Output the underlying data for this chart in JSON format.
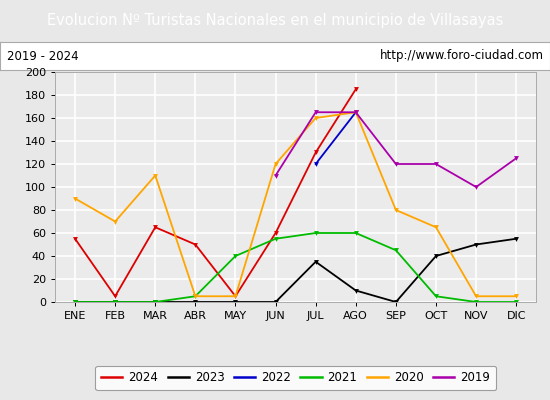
{
  "title": "Evolucion Nº Turistas Nacionales en el municipio de Villasayas",
  "subtitle_left": "2019 - 2024",
  "subtitle_right": "http://www.foro-ciudad.com",
  "title_bg_color": "#4472c4",
  "title_text_color": "#ffffff",
  "months": [
    "ENE",
    "FEB",
    "MAR",
    "ABR",
    "MAY",
    "JUN",
    "JUL",
    "AGO",
    "SEP",
    "OCT",
    "NOV",
    "DIC"
  ],
  "ylim": [
    0,
    200
  ],
  "yticks": [
    0,
    20,
    40,
    60,
    80,
    100,
    120,
    140,
    160,
    180,
    200
  ],
  "series": {
    "2024": {
      "color": "#dd0000",
      "data": [
        55,
        5,
        65,
        50,
        5,
        60,
        130,
        185,
        null,
        null,
        null,
        null
      ]
    },
    "2023": {
      "color": "#000000",
      "data": [
        0,
        0,
        0,
        0,
        0,
        0,
        35,
        10,
        0,
        40,
        50,
        55
      ]
    },
    "2022": {
      "color": "#0000cc",
      "data": [
        null,
        null,
        null,
        null,
        null,
        null,
        120,
        165,
        null,
        null,
        null,
        null
      ]
    },
    "2021": {
      "color": "#00bb00",
      "data": [
        0,
        0,
        0,
        5,
        40,
        55,
        60,
        60,
        45,
        5,
        0,
        0
      ]
    },
    "2020": {
      "color": "#ffa500",
      "data": [
        90,
        70,
        110,
        5,
        5,
        120,
        160,
        165,
        80,
        65,
        5,
        5
      ]
    },
    "2019": {
      "color": "#aa00aa",
      "data": [
        null,
        null,
        null,
        null,
        null,
        110,
        165,
        165,
        120,
        120,
        100,
        125
      ]
    }
  },
  "legend_order": [
    "2024",
    "2023",
    "2022",
    "2021",
    "2020",
    "2019"
  ],
  "bg_color": "#e8e8e8",
  "plot_bg_color": "#ebebeb",
  "grid_color": "#ffffff",
  "subtitle_box_color": "#ffffff"
}
